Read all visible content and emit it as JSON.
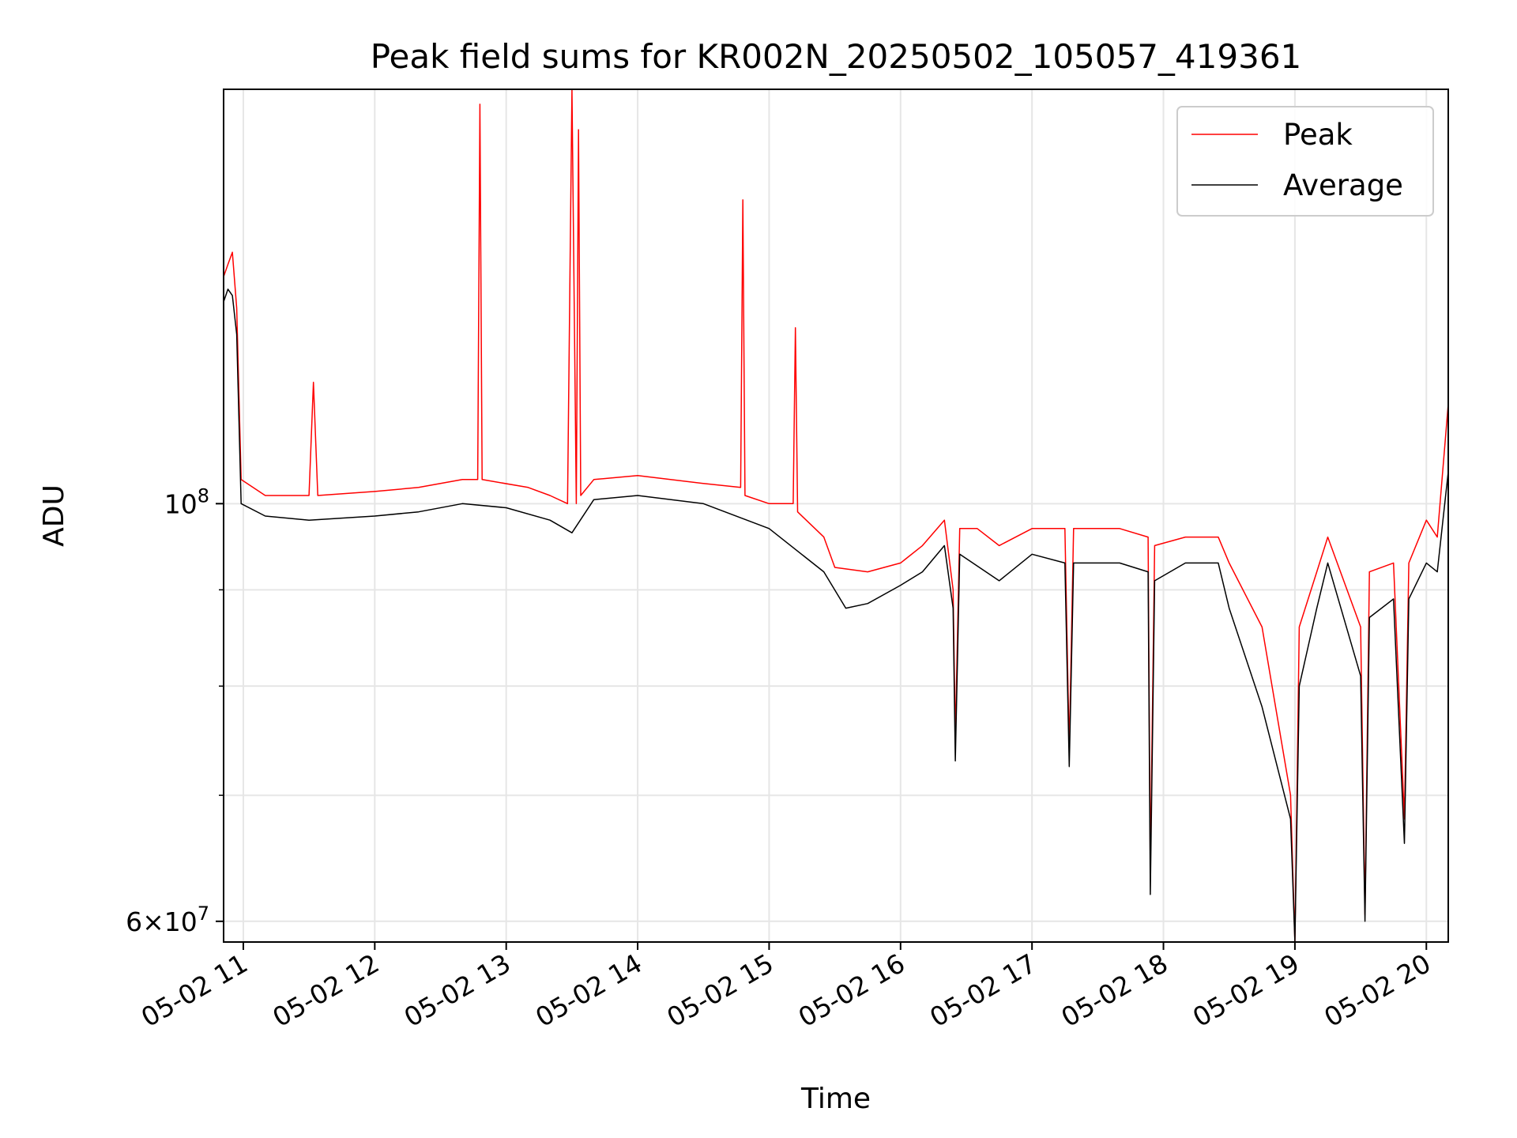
{
  "chart_data": {
    "type": "line",
    "title": "Peak field sums for KR002N_20250502_105057_419361",
    "xlabel": "Time",
    "ylabel": "ADU",
    "y_scale": "log",
    "ylim": [
      58500000,
      166000000
    ],
    "xlim": [
      "2025-05-02 10:51",
      "2025-05-02 20:10"
    ],
    "x_ticks": [
      "2025-05-02 11:00",
      "2025-05-02 12:00",
      "2025-05-02 13:00",
      "2025-05-02 14:00",
      "2025-05-02 15:00",
      "2025-05-02 16:00",
      "2025-05-02 17:00",
      "2025-05-02 18:00",
      "2025-05-02 19:00",
      "2025-05-02 20:00"
    ],
    "x_tick_labels": [
      "05-02 11",
      "05-02 12",
      "05-02 13",
      "05-02 14",
      "05-02 15",
      "05-02 16",
      "05-02 17",
      "05-02 18",
      "05-02 19",
      "05-02 20"
    ],
    "y_ticks": [
      60000000,
      100000000
    ],
    "y_minor_ticks": [
      70000000,
      80000000,
      90000000
    ],
    "grid": true,
    "legend_position": "top-right",
    "series": [
      {
        "name": "Peak",
        "color": "#ff0000",
        "points": [
          [
            "2025-05-02 10:51",
            132000000
          ],
          [
            "2025-05-02 10:53",
            134000000
          ],
          [
            "2025-05-02 10:55",
            136000000
          ],
          [
            "2025-05-02 10:57",
            127000000
          ],
          [
            "2025-05-02 10:59",
            103000000
          ],
          [
            "2025-05-02 11:10",
            101000000
          ],
          [
            "2025-05-02 11:30",
            101000000
          ],
          [
            "2025-05-02 11:32",
            116000000
          ],
          [
            "2025-05-02 11:34",
            101000000
          ],
          [
            "2025-05-02 12:00",
            101500000
          ],
          [
            "2025-05-02 12:20",
            102000000
          ],
          [
            "2025-05-02 12:40",
            103000000
          ],
          [
            "2025-05-02 12:47",
            103000000
          ],
          [
            "2025-05-02 12:48",
            163000000
          ],
          [
            "2025-05-02 12:49",
            103000000
          ],
          [
            "2025-05-02 13:10",
            102000000
          ],
          [
            "2025-05-02 13:20",
            101000000
          ],
          [
            "2025-05-02 13:28",
            100000000
          ],
          [
            "2025-05-02 13:30",
            166000000
          ],
          [
            "2025-05-02 13:32",
            100000000
          ],
          [
            "2025-05-02 13:33",
            158000000
          ],
          [
            "2025-05-02 13:34",
            101000000
          ],
          [
            "2025-05-02 13:40",
            103000000
          ],
          [
            "2025-05-02 14:00",
            103500000
          ],
          [
            "2025-05-02 14:30",
            102500000
          ],
          [
            "2025-05-02 14:47",
            102000000
          ],
          [
            "2025-05-02 14:48",
            145000000
          ],
          [
            "2025-05-02 14:49",
            101000000
          ],
          [
            "2025-05-02 15:00",
            100000000
          ],
          [
            "2025-05-02 15:11",
            100000000
          ],
          [
            "2025-05-02 15:12",
            124000000
          ],
          [
            "2025-05-02 15:13",
            99000000
          ],
          [
            "2025-05-02 15:25",
            96000000
          ],
          [
            "2025-05-02 15:30",
            92500000
          ],
          [
            "2025-05-02 15:45",
            92000000
          ],
          [
            "2025-05-02 16:00",
            93000000
          ],
          [
            "2025-05-02 16:10",
            95000000
          ],
          [
            "2025-05-02 16:20",
            98000000
          ],
          [
            "2025-05-02 16:24",
            90000000
          ],
          [
            "2025-05-02 16:25",
            75000000
          ],
          [
            "2025-05-02 16:27",
            97000000
          ],
          [
            "2025-05-02 16:35",
            97000000
          ],
          [
            "2025-05-02 16:45",
            95000000
          ],
          [
            "2025-05-02 17:00",
            97000000
          ],
          [
            "2025-05-02 17:15",
            97000000
          ],
          [
            "2025-05-02 17:17",
            74000000
          ],
          [
            "2025-05-02 17:19",
            97000000
          ],
          [
            "2025-05-02 17:40",
            97000000
          ],
          [
            "2025-05-02 17:53",
            96000000
          ],
          [
            "2025-05-02 17:54",
            64000000
          ],
          [
            "2025-05-02 17:56",
            95000000
          ],
          [
            "2025-05-02 18:10",
            96000000
          ],
          [
            "2025-05-02 18:25",
            96000000
          ],
          [
            "2025-05-02 18:30",
            93000000
          ],
          [
            "2025-05-02 18:45",
            86000000
          ],
          [
            "2025-05-02 18:58",
            70000000
          ],
          [
            "2025-05-02 19:00",
            58500000
          ],
          [
            "2025-05-02 19:02",
            86000000
          ],
          [
            "2025-05-02 19:10",
            92000000
          ],
          [
            "2025-05-02 19:15",
            96000000
          ],
          [
            "2025-05-02 19:30",
            86000000
          ],
          [
            "2025-05-02 19:32",
            60500000
          ],
          [
            "2025-05-02 19:34",
            92000000
          ],
          [
            "2025-05-02 19:45",
            93000000
          ],
          [
            "2025-05-02 19:50",
            68000000
          ],
          [
            "2025-05-02 19:52",
            93000000
          ],
          [
            "2025-05-02 20:00",
            98000000
          ],
          [
            "2025-05-02 20:05",
            96000000
          ],
          [
            "2025-05-02 20:10",
            113000000
          ]
        ]
      },
      {
        "name": "Average",
        "color": "#000000",
        "points": [
          [
            "2025-05-02 10:51",
            128000000
          ],
          [
            "2025-05-02 10:53",
            130000000
          ],
          [
            "2025-05-02 10:55",
            129000000
          ],
          [
            "2025-05-02 10:57",
            123000000
          ],
          [
            "2025-05-02 10:59",
            100000000
          ],
          [
            "2025-05-02 11:10",
            98500000
          ],
          [
            "2025-05-02 11:30",
            98000000
          ],
          [
            "2025-05-02 12:00",
            98500000
          ],
          [
            "2025-05-02 12:20",
            99000000
          ],
          [
            "2025-05-02 12:40",
            100000000
          ],
          [
            "2025-05-02 13:00",
            99500000
          ],
          [
            "2025-05-02 13:20",
            98000000
          ],
          [
            "2025-05-02 13:30",
            96500000
          ],
          [
            "2025-05-02 13:40",
            100500000
          ],
          [
            "2025-05-02 14:00",
            101000000
          ],
          [
            "2025-05-02 14:30",
            100000000
          ],
          [
            "2025-05-02 15:00",
            97000000
          ],
          [
            "2025-05-02 15:25",
            92000000
          ],
          [
            "2025-05-02 15:35",
            88000000
          ],
          [
            "2025-05-02 15:45",
            88500000
          ],
          [
            "2025-05-02 16:00",
            90500000
          ],
          [
            "2025-05-02 16:10",
            92000000
          ],
          [
            "2025-05-02 16:20",
            95000000
          ],
          [
            "2025-05-02 16:24",
            88000000
          ],
          [
            "2025-05-02 16:25",
            73000000
          ],
          [
            "2025-05-02 16:27",
            94000000
          ],
          [
            "2025-05-02 16:45",
            91000000
          ],
          [
            "2025-05-02 17:00",
            94000000
          ],
          [
            "2025-05-02 17:15",
            93000000
          ],
          [
            "2025-05-02 17:17",
            72500000
          ],
          [
            "2025-05-02 17:19",
            93000000
          ],
          [
            "2025-05-02 17:40",
            93000000
          ],
          [
            "2025-05-02 17:53",
            92000000
          ],
          [
            "2025-05-02 17:54",
            62000000
          ],
          [
            "2025-05-02 17:56",
            91000000
          ],
          [
            "2025-05-02 18:10",
            93000000
          ],
          [
            "2025-05-02 18:25",
            93000000
          ],
          [
            "2025-05-02 18:30",
            88000000
          ],
          [
            "2025-05-02 18:45",
            78000000
          ],
          [
            "2025-05-02 18:58",
            68000000
          ],
          [
            "2025-05-02 19:00",
            58500000
          ],
          [
            "2025-05-02 19:02",
            80000000
          ],
          [
            "2025-05-02 19:10",
            88000000
          ],
          [
            "2025-05-02 19:15",
            93000000
          ],
          [
            "2025-05-02 19:30",
            81000000
          ],
          [
            "2025-05-02 19:32",
            60000000
          ],
          [
            "2025-05-02 19:34",
            87000000
          ],
          [
            "2025-05-02 19:45",
            89000000
          ],
          [
            "2025-05-02 19:50",
            66000000
          ],
          [
            "2025-05-02 19:52",
            89000000
          ],
          [
            "2025-05-02 20:00",
            93000000
          ],
          [
            "2025-05-02 20:05",
            92000000
          ],
          [
            "2025-05-02 20:10",
            104000000
          ]
        ]
      }
    ]
  }
}
